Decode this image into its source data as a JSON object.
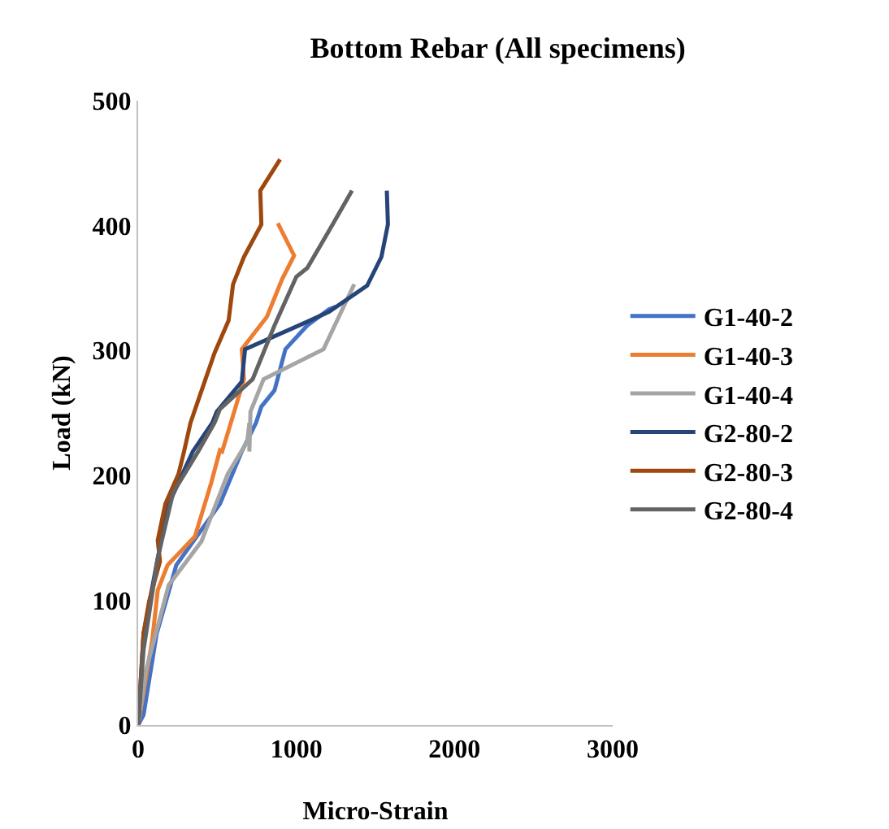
{
  "chart_data": {
    "type": "line",
    "title": "Bottom Rebar (All specimens)",
    "xlabel": "Micro-Strain",
    "ylabel": "Load (kN)",
    "xlim": [
      0,
      3000
    ],
    "xticks": [
      0,
      1000,
      2000,
      3000
    ],
    "ylim": [
      0,
      500
    ],
    "yticks": [
      0,
      100,
      200,
      300,
      400,
      500
    ],
    "grid": false,
    "legend": "right",
    "marker": "none",
    "line_style": "solid",
    "series": [
      {
        "name": "G1-40-2",
        "color": "#4472c4",
        "x": [
          0,
          34,
          117,
          241,
          517,
          655,
          745,
          779,
          862,
          931,
          1069,
          1207,
          1250
        ],
        "values": [
          0,
          8,
          73,
          128,
          177,
          219,
          242,
          255,
          268,
          301,
          320,
          333,
          335
        ]
      },
      {
        "name": "G1-40-3",
        "color": "#ed7d31",
        "x": [
          0,
          90,
          124,
          186,
          359,
          462,
          517,
          531,
          586,
          669,
          655,
          814,
          910,
          986,
          883
        ],
        "values": [
          0,
          69,
          108,
          128,
          151,
          194,
          220,
          219,
          242,
          277,
          301,
          327,
          357,
          376,
          402
        ]
      },
      {
        "name": "G1-40-4",
        "color": "#a5a5a5",
        "x": [
          0,
          48,
          193,
          400,
          566,
          690,
          703,
          703,
          710,
          793,
          1172,
          1366
        ],
        "values": [
          0,
          43,
          112,
          147,
          201,
          227,
          242,
          219,
          251,
          277,
          301,
          353
        ]
      },
      {
        "name": "G2-80-2",
        "color": "#264478",
        "x": [
          0,
          34,
          117,
          193,
          345,
          469,
          497,
          655,
          676,
          1069,
          1207,
          1448,
          1538,
          1579,
          1572
        ],
        "values": [
          0,
          73,
          129,
          177,
          219,
          242,
          251,
          275,
          301,
          323,
          331,
          352,
          375,
          401,
          428
        ]
      },
      {
        "name": "G2-80-3",
        "color": "#9e480e",
        "x": [
          0,
          34,
          69,
          138,
          124,
          172,
          255,
          290,
          331,
          366,
          483,
          572,
          600,
          669,
          779,
          772,
          897
        ],
        "values": [
          0,
          73,
          99,
          131,
          148,
          177,
          201,
          219,
          242,
          255,
          298,
          324,
          353,
          375,
          401,
          428,
          453
        ]
      },
      {
        "name": "G2-80-4",
        "color": "#636363",
        "x": [
          0,
          34,
          124,
          221,
          379,
          483,
          517,
          724,
          862,
          1000,
          1069,
          1207,
          1352
        ],
        "values": [
          0,
          60,
          134,
          186,
          219,
          242,
          253,
          277,
          320,
          359,
          366,
          396,
          428
        ]
      }
    ]
  }
}
